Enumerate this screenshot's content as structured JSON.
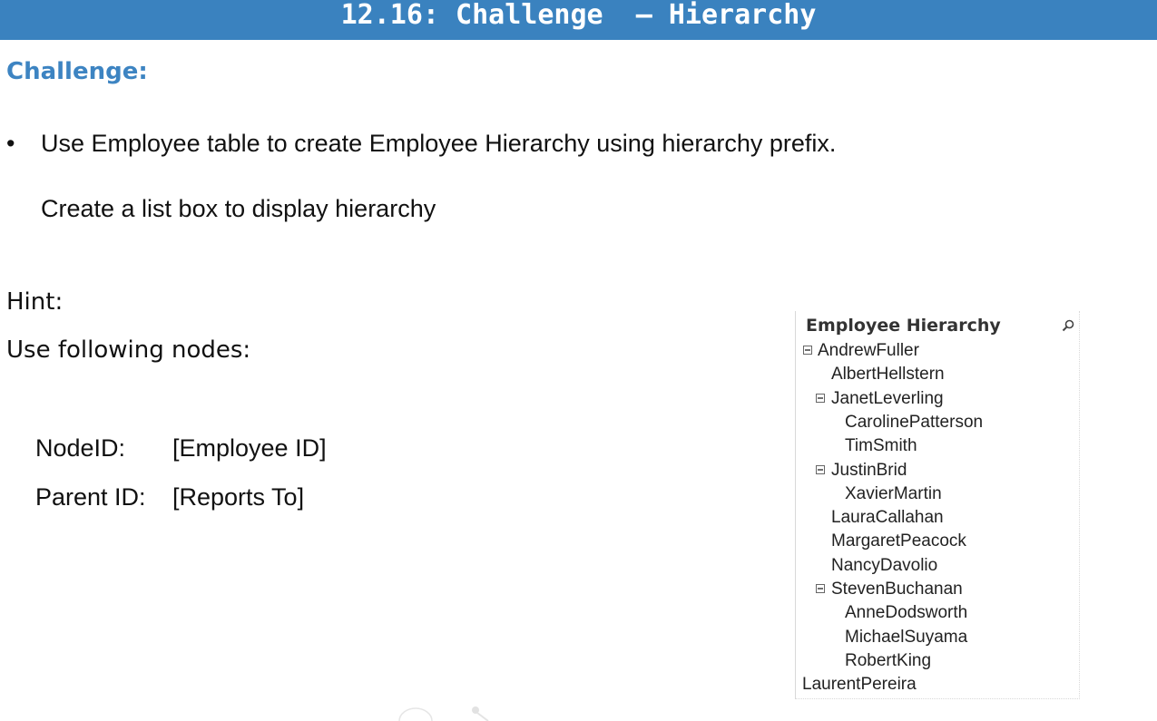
{
  "slide": {
    "title": "12.16: Challenge  – Hierarchy",
    "challenge_heading": "Challenge:",
    "bullet_symbol": "•",
    "bullet_text": "Use Employee table to create Employee Hierarchy using hierarchy prefix.",
    "subline": "Create a list box to display hierarchy",
    "hint": "Hint:",
    "nodes_line": "Use following nodes:",
    "node_rows": [
      {
        "key": "NodeID:",
        "value": "[Employee ID]"
      },
      {
        "key": "Parent ID:",
        "value": "[Reports To]"
      }
    ]
  },
  "listbox": {
    "title": "Employee Hierarchy",
    "search_icon": "search-icon",
    "items": [
      {
        "label": "AndrewFuller",
        "level": 0,
        "expanded": true
      },
      {
        "label": "AlbertHellstern",
        "level": 1
      },
      {
        "label": "JanetLeverling",
        "level": 1,
        "expanded": true
      },
      {
        "label": "CarolinePatterson",
        "level": 2
      },
      {
        "label": "TimSmith",
        "level": 2
      },
      {
        "label": "JustinBrid",
        "level": 1,
        "expanded": true
      },
      {
        "label": "XavierMartin",
        "level": 2
      },
      {
        "label": "LauraCallahan",
        "level": 1
      },
      {
        "label": "MargaretPeacock",
        "level": 1
      },
      {
        "label": "NancyDavolio",
        "level": 1
      },
      {
        "label": "StevenBuchanan",
        "level": 1,
        "expanded": true
      },
      {
        "label": "AnneDodsworth",
        "level": 2
      },
      {
        "label": "MichaelSuyama",
        "level": 2
      },
      {
        "label": "RobertKing",
        "level": 2
      },
      {
        "label": "LaurentPereira",
        "level": 0
      }
    ]
  },
  "colors": {
    "title_bar": "#3a82bf",
    "heading": "#3d84c2",
    "text": "#111111"
  }
}
